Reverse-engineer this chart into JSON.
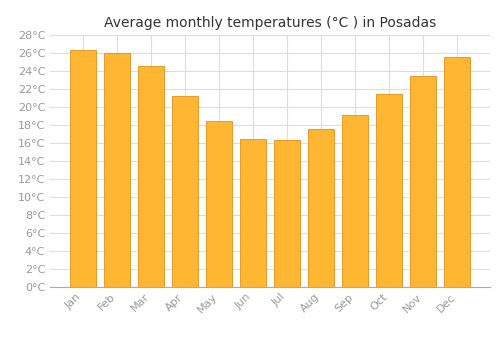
{
  "title": "Average monthly temperatures (°C ) in Posadas",
  "months": [
    "Jan",
    "Feb",
    "Mar",
    "Apr",
    "May",
    "Jun",
    "Jul",
    "Aug",
    "Sep",
    "Oct",
    "Nov",
    "Dec"
  ],
  "values": [
    26.3,
    26.0,
    24.6,
    21.2,
    18.5,
    16.5,
    16.3,
    17.6,
    19.1,
    21.5,
    23.5,
    25.6
  ],
  "bar_color": "#FFA500",
  "bar_color_inner": "#FFB733",
  "bar_edge_color": "#E08000",
  "background_color": "#FFFFFF",
  "grid_color": "#DDDDDD",
  "text_color": "#999999",
  "title_color": "#333333",
  "ylim": [
    0,
    28
  ],
  "ytick_step": 2,
  "title_fontsize": 10,
  "tick_fontsize": 8
}
